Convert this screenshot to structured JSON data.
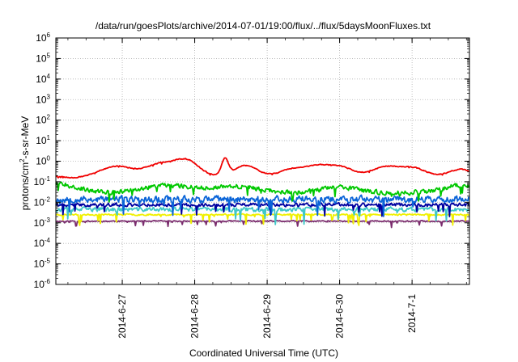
{
  "chart_data": {
    "type": "line",
    "title": "/data/run/goesPlots/archive/2014-07-01/19:00/flux/../flux/5daysMoonFluxes.txt",
    "xlabel": "Coordinated Universal Time (UTC)",
    "ylabel_main": "protons/cm",
    "ylabel_sup": "2",
    "ylabel_rest": "-s-sr-MeV",
    "y_scale": "log",
    "ylim": [
      1e-06,
      1000000.0
    ],
    "y_ticks": [
      {
        "value": 1e-06,
        "base": "10",
        "exp": "-6"
      },
      {
        "value": 1e-05,
        "base": "10",
        "exp": "-5"
      },
      {
        "value": 0.0001,
        "base": "10",
        "exp": "-4"
      },
      {
        "value": 0.001,
        "base": "10",
        "exp": "-3"
      },
      {
        "value": 0.01,
        "base": "10",
        "exp": "-2"
      },
      {
        "value": 0.1,
        "base": "10",
        "exp": "-1"
      },
      {
        "value": 1.0,
        "base": "10",
        "exp": "0"
      },
      {
        "value": 10.0,
        "base": "10",
        "exp": "1"
      },
      {
        "value": 100.0,
        "base": "10",
        "exp": "2"
      },
      {
        "value": 1000.0,
        "base": "10",
        "exp": "3"
      },
      {
        "value": 10000.0,
        "base": "10",
        "exp": "4"
      },
      {
        "value": 100000.0,
        "base": "10",
        "exp": "5"
      },
      {
        "value": 1000000.0,
        "base": "10",
        "exp": "6"
      }
    ],
    "xlim": [
      "2014-06-26T02:00",
      "2014-07-01T19:00"
    ],
    "x_ticks": [
      {
        "value": "2014-06-27T00:00",
        "label": "2014-6-27"
      },
      {
        "value": "2014-06-28T00:00",
        "label": "2014-6-28"
      },
      {
        "value": "2014-06-29T00:00",
        "label": "2014-6-29"
      },
      {
        "value": "2014-06-30T00:00",
        "label": "2014-6-30"
      },
      {
        "value": "2014-07-01T00:00",
        "label": "2014-7-1"
      }
    ],
    "grid": true,
    "legend": "none",
    "series": [
      {
        "color": "#7b2d6e",
        "level": 0.0012,
        "spread": 0.08,
        "dip_amp": 0.2,
        "seed": 11,
        "bumps": []
      },
      {
        "color": "#f0f000",
        "level": 0.0025,
        "spread": 0.1,
        "dip_amp": 0.35,
        "seed": 23,
        "bumps": []
      },
      {
        "color": "#40c8c8",
        "level": 0.0045,
        "spread": 0.28,
        "dip_amp": 0.45,
        "seed": 37,
        "bumps": []
      },
      {
        "color": "#0000a0",
        "level": 0.0075,
        "spread": 0.22,
        "dip_amp": 0.4,
        "seed": 41,
        "bumps": []
      },
      {
        "color": "#0a64d8",
        "level": 0.014,
        "spread": 0.45,
        "dip_amp": 0.55,
        "seed": 53,
        "bumps": []
      },
      {
        "color": "#00c800",
        "level": 0.03,
        "spread": 0.3,
        "dip_amp": 0.3,
        "seed": 67,
        "bumps": [
          {
            "at": "2014-06-26T03:00",
            "width_h": 8,
            "log_amp": 0.45
          },
          {
            "at": "2014-06-27T16:00",
            "width_h": 12,
            "log_amp": 0.35
          },
          {
            "at": "2014-06-28T14:00",
            "width_h": 10,
            "log_amp": 0.3
          },
          {
            "at": "2014-06-30T00:00",
            "width_h": 8,
            "log_amp": 0.25
          },
          {
            "at": "2014-07-01T16:00",
            "width_h": 8,
            "log_amp": 0.35
          }
        ]
      },
      {
        "color": "#f00000",
        "level": 0.2,
        "spread": 0.06,
        "dip_amp": 0.05,
        "seed": 79,
        "bumps": [
          {
            "at": "2014-06-26T08:00",
            "width_h": 6,
            "log_amp": -0.1
          },
          {
            "at": "2014-06-26T22:00",
            "width_h": 7,
            "log_amp": 0.45
          },
          {
            "at": "2014-06-27T14:00",
            "width_h": 8,
            "log_amp": 0.62
          },
          {
            "at": "2014-06-27T22:00",
            "width_h": 5,
            "log_amp": 0.55
          },
          {
            "at": "2014-06-28T10:00",
            "width_h": 1.6,
            "log_amp": 0.78
          },
          {
            "at": "2014-06-28T17:00",
            "width_h": 5,
            "log_amp": 0.5
          },
          {
            "at": "2014-06-29T08:00",
            "width_h": 5,
            "log_amp": 0.3
          },
          {
            "at": "2014-06-29T17:00",
            "width_h": 6,
            "log_amp": 0.5
          },
          {
            "at": "2014-06-30T01:00",
            "width_h": 5,
            "log_amp": 0.35
          },
          {
            "at": "2014-06-30T16:00",
            "width_h": 7,
            "log_amp": 0.45
          },
          {
            "at": "2014-07-01T01:00",
            "width_h": 5,
            "log_amp": 0.3
          },
          {
            "at": "2014-07-01T16:00",
            "width_h": 5,
            "log_amp": 0.3
          }
        ]
      }
    ]
  }
}
